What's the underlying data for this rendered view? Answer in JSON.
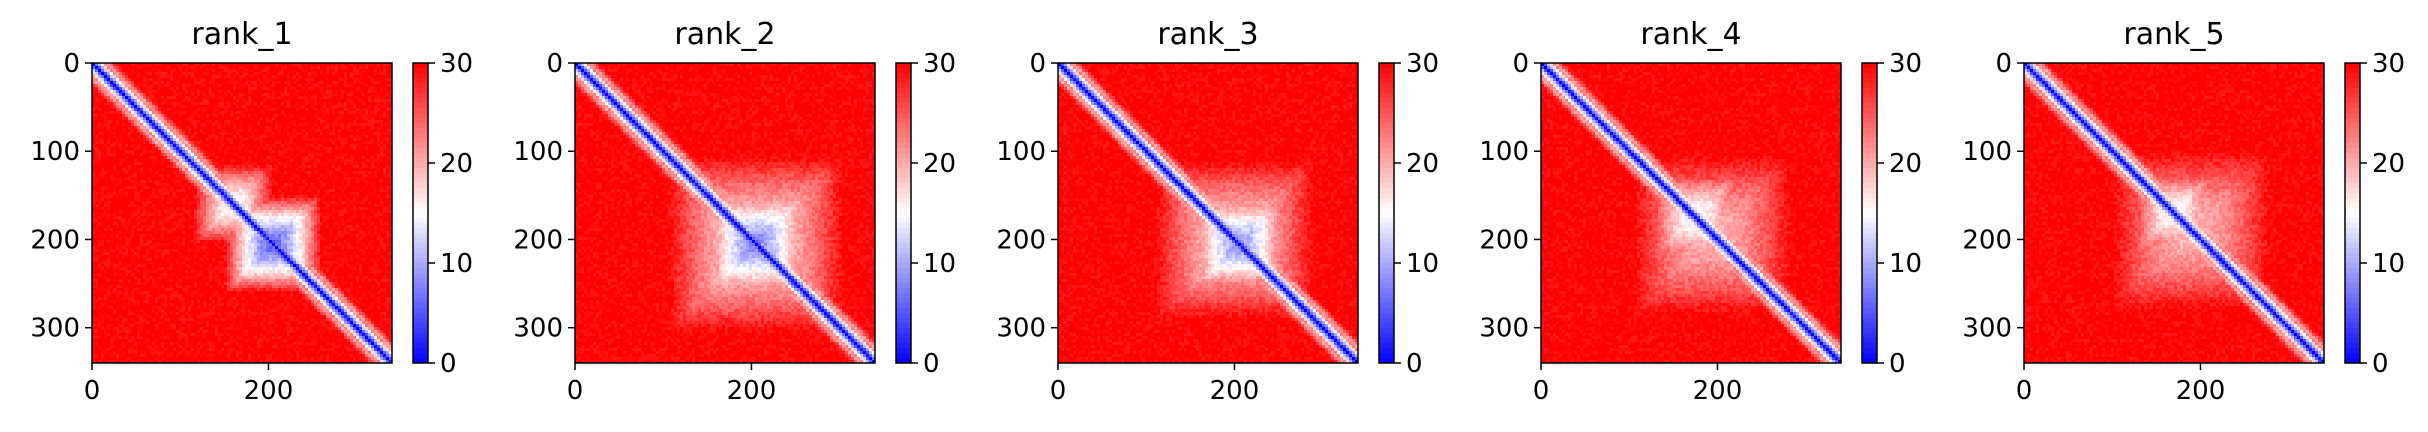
{
  "figure": {
    "panels": [
      {
        "title": "rank_1"
      },
      {
        "title": "rank_2"
      },
      {
        "title": "rank_3"
      },
      {
        "title": "rank_4"
      },
      {
        "title": "rank_5"
      }
    ]
  },
  "chart_data": [
    {
      "type": "heatmap",
      "title": "rank_1",
      "x_ticks": [
        "0",
        "200"
      ],
      "y_ticks": [
        "0",
        "100",
        "200",
        "300"
      ],
      "xlim": [
        0,
        340
      ],
      "ylim": [
        340,
        0
      ],
      "colorbar": {
        "ticks": [
          "0",
          "10",
          "20",
          "30"
        ],
        "range": [
          0,
          30
        ],
        "colormap": "bwr"
      },
      "diagonal_value": 0,
      "background_value": 30,
      "domain_patches": [
        {
          "center": [
            205,
            205
          ],
          "half": 55,
          "min_value": 6
        },
        {
          "center": [
            160,
            160
          ],
          "half": 45,
          "min_value": 14
        }
      ]
    },
    {
      "type": "heatmap",
      "title": "rank_2",
      "x_ticks": [
        "0",
        "200"
      ],
      "y_ticks": [
        "0",
        "100",
        "200",
        "300"
      ],
      "xlim": [
        0,
        340
      ],
      "ylim": [
        340,
        0
      ],
      "colorbar": {
        "ticks": [
          "0",
          "10",
          "20",
          "30"
        ],
        "range": [
          0,
          30
        ],
        "colormap": "bwr"
      },
      "diagonal_value": 0,
      "background_value": 30,
      "domain_patches": [
        {
          "center": [
            205,
            205
          ],
          "half": 65,
          "min_value": 8
        },
        {
          "center": [
            205,
            205
          ],
          "half": 100,
          "min_value": 16
        }
      ]
    },
    {
      "type": "heatmap",
      "title": "rank_3",
      "x_ticks": [
        "0",
        "200"
      ],
      "y_ticks": [
        "0",
        "100",
        "200",
        "300"
      ],
      "xlim": [
        0,
        340
      ],
      "ylim": [
        340,
        0
      ],
      "colorbar": {
        "ticks": [
          "0",
          "10",
          "20",
          "30"
        ],
        "range": [
          0,
          30
        ],
        "colormap": "bwr"
      },
      "diagonal_value": 0,
      "background_value": 30,
      "domain_patches": [
        {
          "center": [
            205,
            205
          ],
          "half": 60,
          "min_value": 9
        },
        {
          "center": [
            200,
            200
          ],
          "half": 90,
          "min_value": 17
        }
      ]
    },
    {
      "type": "heatmap",
      "title": "rank_4",
      "x_ticks": [
        "0",
        "200"
      ],
      "y_ticks": [
        "0",
        "100",
        "200",
        "300"
      ],
      "xlim": [
        0,
        340
      ],
      "ylim": [
        340,
        0
      ],
      "colorbar": {
        "ticks": [
          "0",
          "10",
          "20",
          "30"
        ],
        "range": [
          0,
          30
        ],
        "colormap": "bwr"
      },
      "diagonal_value": 0,
      "background_value": 30,
      "domain_patches": [
        {
          "center": [
            175,
            175
          ],
          "half": 55,
          "min_value": 14
        },
        {
          "center": [
            195,
            195
          ],
          "half": 90,
          "min_value": 19
        }
      ]
    },
    {
      "type": "heatmap",
      "title": "rank_5",
      "x_ticks": [
        "0",
        "200"
      ],
      "y_ticks": [
        "0",
        "100",
        "200",
        "300"
      ],
      "xlim": [
        0,
        340
      ],
      "ylim": [
        340,
        0
      ],
      "colorbar": {
        "ticks": [
          "0",
          "10",
          "20",
          "30"
        ],
        "range": [
          0,
          30
        ],
        "colormap": "bwr"
      },
      "diagonal_value": 0,
      "background_value": 30,
      "domain_patches": [
        {
          "center": [
            170,
            170
          ],
          "half": 50,
          "min_value": 14
        },
        {
          "center": [
            190,
            190
          ],
          "half": 90,
          "min_value": 19
        }
      ]
    }
  ]
}
